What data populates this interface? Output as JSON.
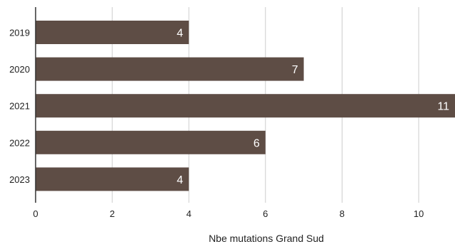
{
  "chart_data": {
    "type": "bar",
    "orientation": "horizontal",
    "categories": [
      "2019",
      "2020",
      "2021",
      "2022",
      "2023"
    ],
    "values": [
      4,
      7,
      11,
      6,
      4
    ],
    "xlabel": "Nbe mutations Grand Sud",
    "xlim": [
      0,
      11
    ],
    "xticks": [
      0,
      2,
      4,
      6,
      8,
      10
    ],
    "grid": "vertical",
    "bar_color": "#5e4d45",
    "grid_color": "#cccccc",
    "axis_color": "#333333",
    "data_labels": true
  }
}
